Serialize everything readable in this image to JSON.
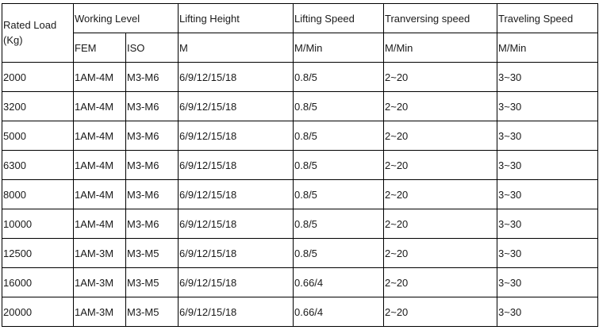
{
  "headers": {
    "rated_load": "Rated Load (Kg)",
    "working_level": "Working Level",
    "lifting_height": "Lifting Height",
    "lifting_speed": "Lifting Speed",
    "traversing_speed": "Tranversing speed",
    "traveling_speed": "Traveling Speed"
  },
  "subheaders": {
    "fem": "FEM",
    "iso": "ISO",
    "height_unit": "M",
    "lifting_unit": "M/Min",
    "traversing_unit": "M/Min",
    "traveling_unit": "M/Min"
  },
  "rows": [
    [
      "2000",
      "1AM-4M",
      "M3-M6",
      "6/9/12/15/18",
      "0.8/5",
      "2~20",
      "3~30"
    ],
    [
      "3200",
      "1AM-4M",
      "M3-M6",
      "6/9/12/15/18",
      "0.8/5",
      "2~20",
      "3~30"
    ],
    [
      "5000",
      "1AM-4M",
      "M3-M6",
      "6/9/12/15/18",
      "0.8/5",
      "2~20",
      "3~30"
    ],
    [
      "6300",
      "1AM-4M",
      "M3-M6",
      "6/9/12/15/18",
      "0.8/5",
      "2~20",
      "3~30"
    ],
    [
      "8000",
      "1AM-4M",
      "M3-M6",
      "6/9/12/15/18",
      "0.8/5",
      "2~20",
      "3~30"
    ],
    [
      "10000",
      "1AM-4M",
      "M3-M6",
      "6/9/12/15/18",
      "0.8/5",
      "2~20",
      "3~30"
    ],
    [
      "12500",
      "1AM-3M",
      "M3-M5",
      "6/9/12/15/18",
      "0.8/5",
      "2~20",
      "3~30"
    ],
    [
      "16000",
      "1AM-3M",
      "M3-M5",
      "6/9/12/15/18",
      "0.66/4",
      "2~20",
      "3~30"
    ],
    [
      "20000",
      "1AM-3M",
      "M3-M5",
      "6/9/12/15/18",
      "0.66/4",
      "2~20",
      "3~30"
    ]
  ]
}
